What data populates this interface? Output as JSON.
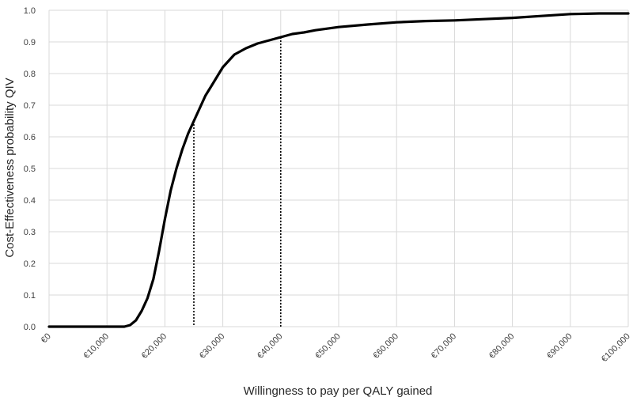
{
  "chart_data": {
    "type": "line",
    "title": "",
    "xlabel": "Willingness to pay per QALY gained",
    "ylabel": "Cost-Effectiveness probability QIV",
    "xlim": [
      0,
      100000
    ],
    "ylim": [
      0,
      1.0
    ],
    "grid": true,
    "legend": "none",
    "x_tick_labels": [
      "€0",
      "€10,000",
      "€20,000",
      "€30,000",
      "€40,000",
      "€50,000",
      "€60,000",
      "€70,000",
      "€80,000",
      "€90,000",
      "€100,000"
    ],
    "y_tick_labels": [
      "0.0",
      "0.1",
      "0.2",
      "0.3",
      "0.4",
      "0.5",
      "0.6",
      "0.7",
      "0.8",
      "0.9",
      "1.0"
    ],
    "series": [
      {
        "x": [
          0,
          5000,
          10000,
          13000,
          14000,
          15000,
          16000,
          17000,
          18000,
          19000,
          20000,
          21000,
          22000,
          23000,
          24000,
          25000,
          26000,
          27000,
          28000,
          29000,
          30000,
          32000,
          34000,
          36000,
          38000,
          40000,
          42000,
          44000,
          46000,
          48000,
          50000,
          55000,
          60000,
          65000,
          70000,
          75000,
          80000,
          85000,
          90000,
          95000,
          100000
        ],
        "y": [
          0,
          0,
          0,
          0,
          0.005,
          0.02,
          0.05,
          0.09,
          0.15,
          0.24,
          0.34,
          0.43,
          0.5,
          0.56,
          0.61,
          0.65,
          0.69,
          0.73,
          0.76,
          0.79,
          0.82,
          0.86,
          0.88,
          0.895,
          0.905,
          0.915,
          0.925,
          0.93,
          0.937,
          0.942,
          0.947,
          0.955,
          0.962,
          0.966,
          0.968,
          0.972,
          0.976,
          0.982,
          0.988,
          0.99,
          0.99
        ]
      }
    ],
    "reference_lines": [
      {
        "x": 25000,
        "y": 0.65
      },
      {
        "x": 40000,
        "y": 0.915
      }
    ],
    "colors": {
      "line": "#000000",
      "grid": "#d9d9d9",
      "reference": "#000000"
    }
  }
}
